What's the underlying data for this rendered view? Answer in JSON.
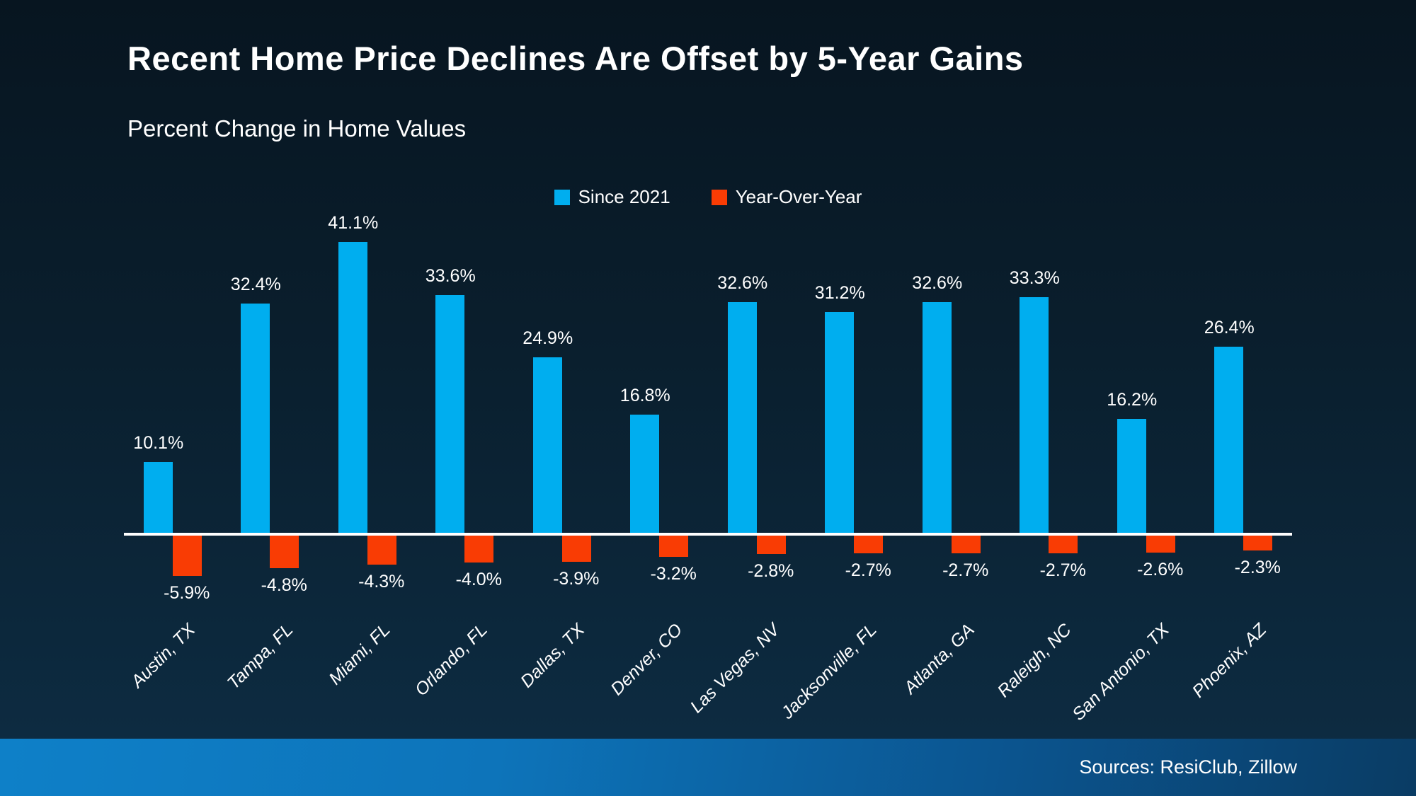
{
  "slide": {
    "title": "Recent Home Price Declines Are Offset by 5-Year Gains",
    "subtitle": "Percent Change in Home Values",
    "footer": {
      "sources": "Sources: ResiClub, Zillow"
    }
  },
  "colors": {
    "background": "#0a1f2e",
    "text": "#ffffff",
    "axis": "#ffffff",
    "bar_blue": "#00AEEF",
    "bar_red": "#F93C04",
    "footer_gradient_left": "#0e80c8",
    "footer_gradient_right": "#0a3c64"
  },
  "chart_data": {
    "type": "bar",
    "title": "Recent Home Price Declines Are Offset by 5-Year Gains",
    "subtitle": "Percent Change in Home Values",
    "xlabel": "",
    "ylabel": "",
    "grid": false,
    "y_axis_visible": false,
    "legend_position": "top-center",
    "ylim": [
      -8,
      45
    ],
    "categories": [
      "Austin, TX",
      "Tampa, FL",
      "Miami, FL",
      "Orlando, FL",
      "Dallas, TX",
      "Denver, CO",
      "Las Vegas, NV",
      "Jacksonville, FL",
      "Atlanta, GA",
      "Raleigh, NC",
      "San Antonio, TX",
      "Phoenix, AZ"
    ],
    "series": [
      {
        "name": "Since 2021",
        "color": "#00AEEF",
        "values": [
          10.1,
          32.4,
          41.1,
          33.6,
          24.9,
          16.8,
          32.6,
          31.2,
          32.6,
          33.3,
          16.2,
          26.4
        ],
        "labels": [
          "10.1%",
          "32.4%",
          "41.1%",
          "33.6%",
          "24.9%",
          "16.8%",
          "32.6%",
          "31.2%",
          "32.6%",
          "33.3%",
          "16.2%",
          "26.4%"
        ]
      },
      {
        "name": "Year-Over-Year",
        "color": "#F93C04",
        "values": [
          -5.9,
          -4.8,
          -4.3,
          -4.0,
          -3.9,
          -3.2,
          -2.8,
          -2.7,
          -2.7,
          -2.7,
          -2.6,
          -2.3
        ],
        "labels": [
          "-5.9%",
          "-4.8%",
          "-4.3%",
          "-4.0%",
          "-3.9%",
          "-3.2%",
          "-2.8%",
          "-2.7%",
          "-2.7%",
          "-2.7%",
          "-2.6%",
          "-2.3%"
        ]
      }
    ]
  }
}
